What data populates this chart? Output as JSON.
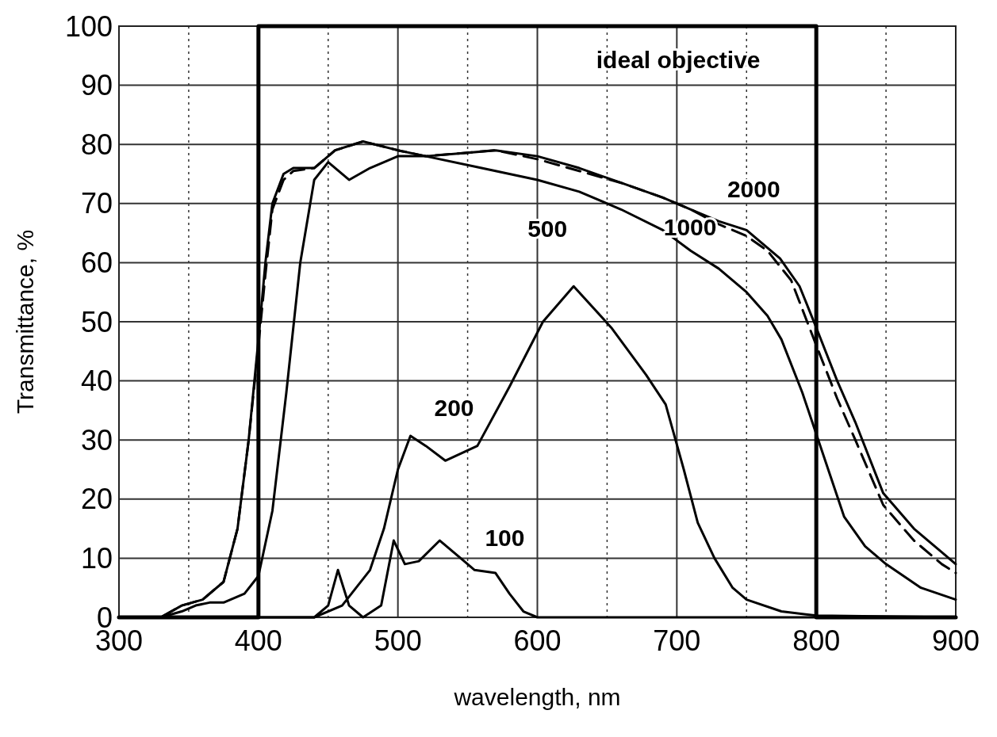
{
  "chart_data": {
    "type": "line",
    "xlabel": "wavelength, nm",
    "ylabel": "Transmittance, %",
    "xlim": [
      300,
      900
    ],
    "ylim": [
      0,
      100
    ],
    "xticks": [
      300,
      {
        "value": 350,
        "label": null
      },
      400,
      {
        "value": 450,
        "label": null
      },
      500,
      {
        "value": 550,
        "label": null
      },
      600,
      {
        "value": 650,
        "label": null
      },
      700,
      {
        "value": 750,
        "label": null
      },
      800,
      {
        "value": 850,
        "label": null
      },
      900
    ],
    "yticks": [
      0,
      10,
      20,
      30,
      40,
      50,
      60,
      70,
      80,
      90,
      100
    ],
    "grid": true,
    "series": [
      {
        "name": "ideal objective",
        "color": "#000000",
        "line_style": "solid",
        "x": [
          300,
          400,
          400,
          800,
          800,
          900
        ],
        "values": [
          0,
          0,
          100,
          100,
          0,
          0
        ]
      },
      {
        "name": "2000",
        "color": "#000000",
        "line_style": "solid",
        "x": [
          300,
          330,
          345,
          360,
          375,
          385,
          393,
          400,
          405,
          410,
          418,
          425,
          440,
          455,
          475,
          500,
          520,
          545,
          570,
          600,
          630,
          660,
          690,
          710,
          730,
          750,
          774,
          788,
          800,
          815,
          828,
          848,
          870,
          890,
          900
        ],
        "values": [
          0,
          0,
          2,
          3,
          6,
          15,
          30,
          47,
          60,
          70,
          75,
          76,
          76,
          79,
          80.5,
          79,
          78,
          78.5,
          79,
          78,
          76,
          73.5,
          71,
          69,
          67,
          65.5,
          60.7,
          56,
          49,
          40,
          33,
          21,
          15,
          11,
          9
        ]
      },
      {
        "name": "1000",
        "color": "#000000",
        "line_style": "dashed",
        "x": [
          300,
          330,
          345,
          360,
          375,
          385,
          393,
          400,
          405,
          410,
          418,
          425,
          440,
          455,
          475,
          500,
          520,
          545,
          570,
          600,
          630,
          660,
          690,
          710,
          730,
          750,
          765,
          782,
          800,
          815,
          828,
          848,
          870,
          890,
          900
        ],
        "values": [
          0,
          0,
          2,
          3,
          6,
          15,
          30,
          46,
          58,
          69,
          74,
          75.5,
          76,
          79,
          80.5,
          79,
          78,
          78.5,
          79,
          77.5,
          75.5,
          73.5,
          71,
          69,
          66.5,
          64.5,
          62,
          57,
          46,
          37,
          30,
          19,
          13,
          9,
          7.5
        ]
      },
      {
        "name": "500",
        "color": "#000000",
        "line_style": "solid",
        "x": [
          300,
          330,
          345,
          355,
          365,
          375,
          390,
          400,
          410,
          420,
          430,
          440,
          450,
          465,
          480,
          500,
          520,
          560,
          600,
          630,
          660,
          690,
          710,
          730,
          750,
          765,
          775,
          790,
          800,
          810,
          820,
          835,
          850,
          875,
          900
        ],
        "values": [
          0,
          0,
          1,
          2,
          2.5,
          2.5,
          4,
          7,
          18,
          38,
          60,
          74,
          77,
          74,
          76,
          78,
          78,
          76,
          74,
          72,
          69,
          65.5,
          62,
          59,
          55,
          51,
          47,
          38,
          31,
          24,
          17,
          12,
          9,
          5,
          3
        ]
      },
      {
        "name": "200",
        "color": "#000000",
        "line_style": "solid",
        "x": [
          300,
          440,
          460,
          480,
          490,
          500,
          509,
          520,
          534,
          557,
          580,
          604,
          626,
          653,
          678,
          692,
          705,
          715,
          727,
          740,
          750,
          775,
          800,
          900
        ],
        "values": [
          0,
          0,
          2,
          8,
          15,
          25,
          30.7,
          29,
          26.5,
          29,
          39,
          50,
          56,
          49,
          41,
          36,
          25,
          16,
          10,
          5,
          3,
          1,
          0.3,
          0
        ]
      },
      {
        "name": "100",
        "color": "#000000",
        "line_style": "solid",
        "x": [
          300,
          440,
          450,
          457,
          465,
          475,
          488,
          497,
          505,
          515,
          530,
          545,
          555,
          570,
          580,
          590,
          600,
          900
        ],
        "values": [
          0,
          0,
          2,
          8,
          2,
          0,
          2,
          13,
          9,
          9.5,
          13,
          10,
          8,
          7.5,
          4,
          1,
          0,
          0
        ]
      }
    ]
  }
}
